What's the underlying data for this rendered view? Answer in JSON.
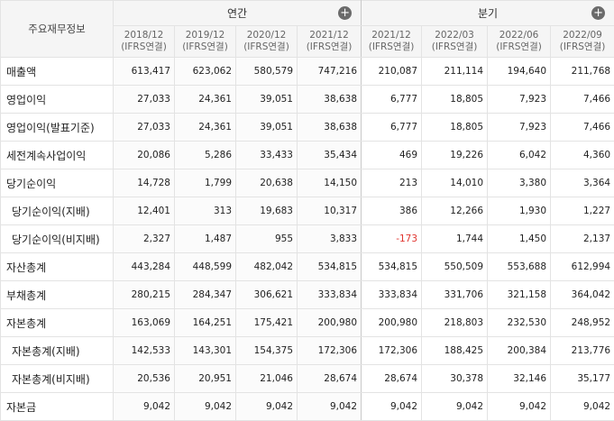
{
  "header": {
    "corner_label": "주요재무정보",
    "annual_label": "연간",
    "quarter_label": "분기",
    "expand_icon": "plus-circle-icon",
    "periods": [
      {
        "date": "2018/12",
        "basis": "(IFRS연결)"
      },
      {
        "date": "2019/12",
        "basis": "(IFRS연결)"
      },
      {
        "date": "2020/12",
        "basis": "(IFRS연결)"
      },
      {
        "date": "2021/12",
        "basis": "(IFRS연결)"
      },
      {
        "date": "2021/12",
        "basis": "(IFRS연결)"
      },
      {
        "date": "2022/03",
        "basis": "(IFRS연결)"
      },
      {
        "date": "2022/06",
        "basis": "(IFRS연결)"
      },
      {
        "date": "2022/09",
        "basis": "(IFRS연결)"
      }
    ]
  },
  "rows": [
    {
      "label": "매출액",
      "sub": false,
      "values": [
        "613,417",
        "623,062",
        "580,579",
        "747,216",
        "210,087",
        "211,114",
        "194,640",
        "211,768"
      ]
    },
    {
      "label": "영업이익",
      "sub": false,
      "values": [
        "27,033",
        "24,361",
        "39,051",
        "38,638",
        "6,777",
        "18,805",
        "7,923",
        "7,466"
      ]
    },
    {
      "label": "영업이익(발표기준)",
      "sub": false,
      "values": [
        "27,033",
        "24,361",
        "39,051",
        "38,638",
        "6,777",
        "18,805",
        "7,923",
        "7,466"
      ]
    },
    {
      "label": "세전계속사업이익",
      "sub": false,
      "values": [
        "20,086",
        "5,286",
        "33,433",
        "35,434",
        "469",
        "19,226",
        "6,042",
        "4,360"
      ]
    },
    {
      "label": "당기순이익",
      "sub": false,
      "values": [
        "14,728",
        "1,799",
        "20,638",
        "14,150",
        "213",
        "14,010",
        "3,380",
        "3,364"
      ]
    },
    {
      "label": "당기순이익(지배)",
      "sub": true,
      "values": [
        "12,401",
        "313",
        "19,683",
        "10,317",
        "386",
        "12,266",
        "1,930",
        "1,227"
      ]
    },
    {
      "label": "당기순이익(비지배)",
      "sub": true,
      "values": [
        "2,327",
        "1,487",
        "955",
        "3,833",
        "-173",
        "1,744",
        "1,450",
        "2,137"
      ]
    },
    {
      "label": "자산총계",
      "sub": false,
      "values": [
        "443,284",
        "448,599",
        "482,042",
        "534,815",
        "534,815",
        "550,509",
        "553,688",
        "612,994"
      ]
    },
    {
      "label": "부채총계",
      "sub": false,
      "values": [
        "280,215",
        "284,347",
        "306,621",
        "333,834",
        "333,834",
        "331,706",
        "321,158",
        "364,042"
      ]
    },
    {
      "label": "자본총계",
      "sub": false,
      "values": [
        "163,069",
        "164,251",
        "175,421",
        "200,980",
        "200,980",
        "218,803",
        "232,530",
        "248,952"
      ]
    },
    {
      "label": "자본총계(지배)",
      "sub": true,
      "values": [
        "142,533",
        "143,301",
        "154,375",
        "172,306",
        "172,306",
        "188,425",
        "200,384",
        "213,776"
      ]
    },
    {
      "label": "자본총계(비지배)",
      "sub": true,
      "values": [
        "20,536",
        "20,951",
        "21,046",
        "28,674",
        "28,674",
        "30,378",
        "32,146",
        "35,177"
      ]
    },
    {
      "label": "자본금",
      "sub": false,
      "values": [
        "9,042",
        "9,042",
        "9,042",
        "9,042",
        "9,042",
        "9,042",
        "9,042",
        "9,042"
      ]
    }
  ],
  "colors": {
    "negative": "#e0352f",
    "header_bg": "#f5f5f5",
    "border": "#e3e3e3"
  }
}
